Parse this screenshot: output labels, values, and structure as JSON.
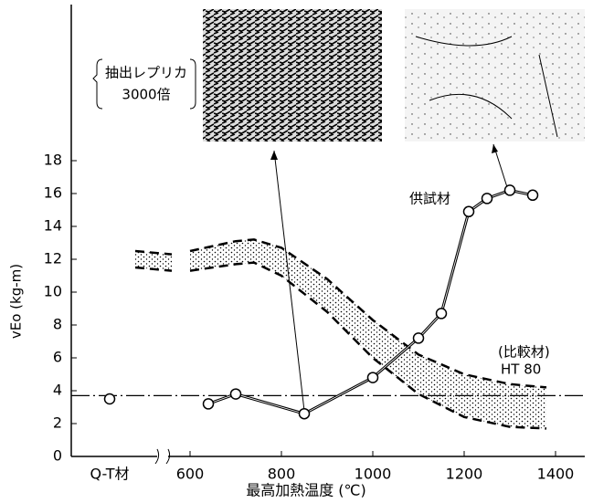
{
  "chart_data": {
    "type": "line",
    "y_label": "vEo (kg-m)",
    "x_label": "最高加熱温度 (℃)",
    "xlim": [
      340,
      1460
    ],
    "ylim": [
      0,
      18
    ],
    "xticks": [
      600,
      800,
      1000,
      1200,
      1400
    ],
    "yticks": [
      0,
      2,
      4,
      6,
      8,
      10,
      12,
      14,
      16,
      18
    ],
    "qt_point": {
      "label": "Q-T材",
      "value": 3.5
    },
    "reference_line": 3.7,
    "photo_caption": [
      "抽出レプリカ",
      "3000倍"
    ],
    "series": [
      {
        "name": "供試材",
        "color": "#000000",
        "x": [
          640,
          700,
          850,
          1000,
          1100,
          1150,
          1210,
          1250,
          1300,
          1350
        ],
        "values": [
          3.2,
          3.8,
          2.6,
          4.8,
          7.2,
          8.7,
          14.9,
          15.7,
          16.2,
          15.9
        ]
      }
    ],
    "band": {
      "name": "(比較材)",
      "label": "HT 80",
      "color": "#000000",
      "x": [
        480,
        560,
        580,
        600,
        700,
        740,
        800,
        900,
        1000,
        1100,
        1200,
        1300,
        1380
      ],
      "upper": [
        12.5,
        12.3,
        null,
        12.5,
        13.1,
        13.2,
        12.7,
        10.8,
        8.3,
        6.2,
        5.0,
        4.4,
        4.2
      ],
      "lower": [
        11.5,
        11.3,
        null,
        11.3,
        11.7,
        11.8,
        11.0,
        8.8,
        6.0,
        3.8,
        2.4,
        1.8,
        1.7
      ]
    }
  }
}
